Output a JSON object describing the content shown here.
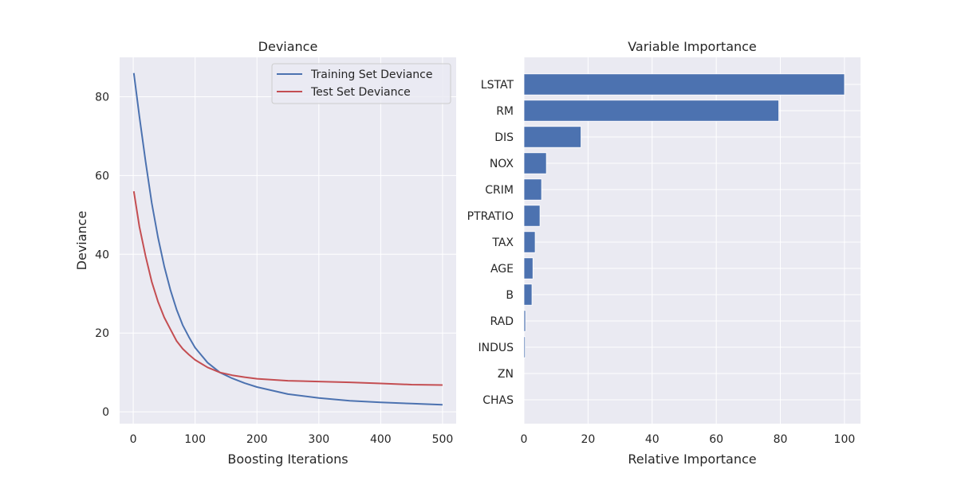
{
  "chart_data": [
    {
      "type": "line",
      "title": "Deviance",
      "xlabel": "Boosting Iterations",
      "ylabel": "Deviance",
      "xlim": [
        -22,
        522
      ],
      "ylim": [
        -3,
        90
      ],
      "xticks": [
        0,
        100,
        200,
        300,
        400,
        500
      ],
      "yticks": [
        0,
        20,
        40,
        60,
        80
      ],
      "grid": true,
      "legend_position": "top-right",
      "x": [
        1,
        10,
        20,
        30,
        40,
        50,
        60,
        70,
        80,
        90,
        100,
        120,
        140,
        160,
        180,
        200,
        250,
        300,
        350,
        400,
        450,
        500
      ],
      "series": [
        {
          "name": "Training Set Deviance",
          "color": "#4c72b0",
          "values": [
            86.0,
            75.0,
            63.5,
            53.0,
            44.3,
            37.0,
            31.0,
            26.0,
            22.0,
            19.0,
            16.3,
            12.5,
            10.0,
            8.5,
            7.3,
            6.3,
            4.5,
            3.5,
            2.8,
            2.4,
            2.1,
            1.8
          ]
        },
        {
          "name": "Test Set Deviance",
          "color": "#c44e52",
          "values": [
            56.0,
            47.0,
            39.5,
            33.0,
            28.0,
            24.0,
            21.0,
            18.0,
            16.0,
            14.5,
            13.2,
            11.3,
            10.0,
            9.3,
            8.8,
            8.4,
            7.9,
            7.7,
            7.5,
            7.2,
            6.9,
            6.8
          ]
        }
      ]
    },
    {
      "type": "bar",
      "orientation": "horizontal",
      "title": "Variable Importance",
      "xlabel": "Relative Importance",
      "ylabel": "",
      "xlim": [
        0,
        105
      ],
      "xticks": [
        0,
        20,
        40,
        60,
        80,
        100
      ],
      "grid": true,
      "color": "#4c72b0",
      "categories": [
        "LSTAT",
        "RM",
        "DIS",
        "NOX",
        "CRIM",
        "PTRATIO",
        "TAX",
        "AGE",
        "B",
        "RAD",
        "INDUS",
        "ZN",
        "CHAS"
      ],
      "values": [
        100,
        79.5,
        17.8,
        7.0,
        5.5,
        5.0,
        3.5,
        2.8,
        2.5,
        0.5,
        0.4,
        0.0,
        0.0
      ]
    }
  ]
}
